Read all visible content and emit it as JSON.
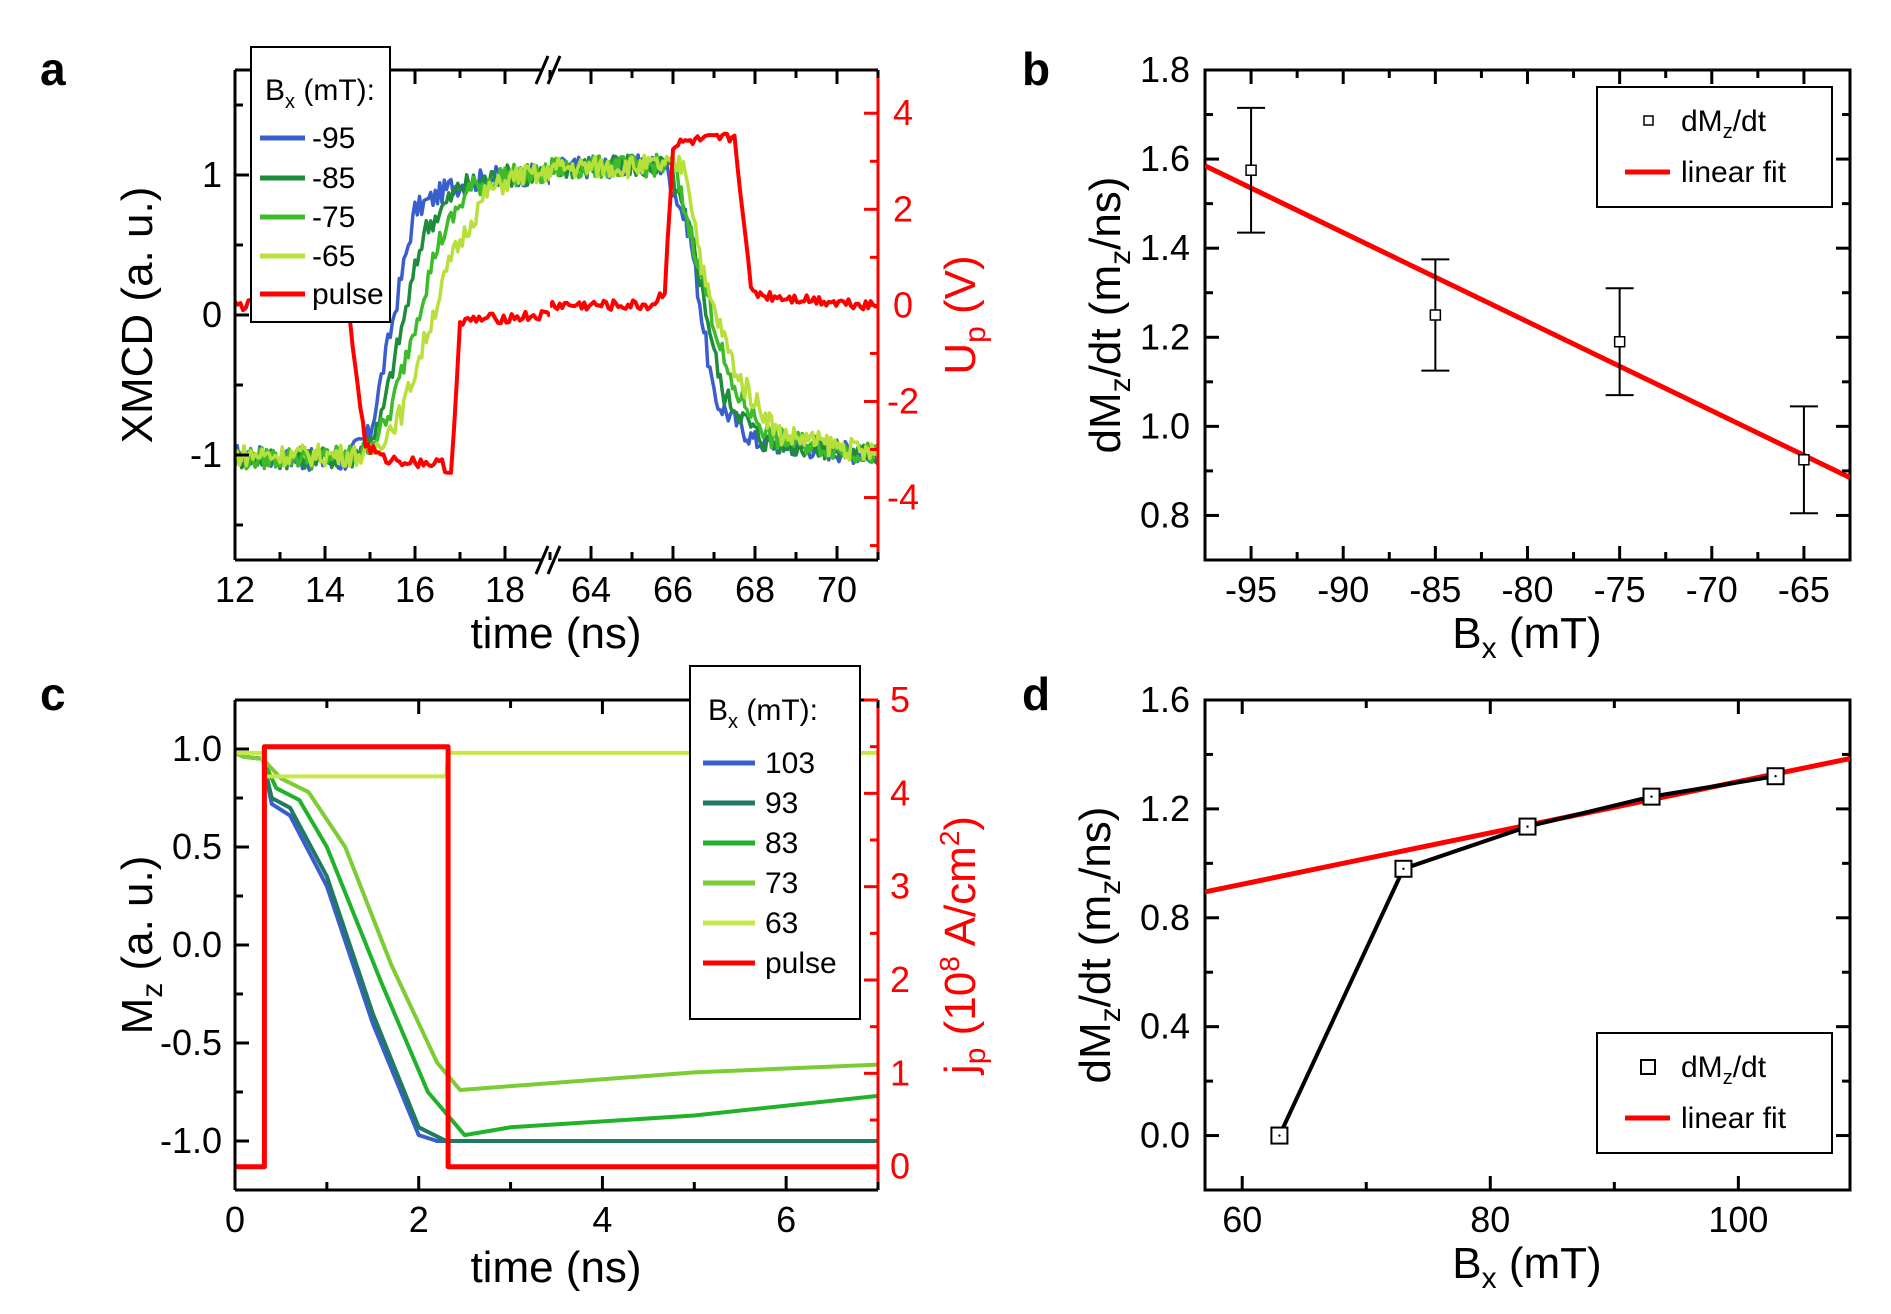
{
  "chart_data": [
    {
      "panel": "a",
      "type": "line",
      "title": "",
      "xlabel": "time (ns)",
      "ylabel": "XMCD (a. u.)",
      "ylabel_right_main": "U",
      "ylabel_right_sub": "p",
      "ylabel_right_unit": " (V)",
      "x_segments": [
        {
          "range": [
            12,
            19
          ],
          "ticks": [
            "12",
            "14",
            "16",
            "18"
          ]
        },
        {
          "range": [
            63,
            71
          ],
          "ticks": [
            "64",
            "66",
            "68",
            "70"
          ]
        }
      ],
      "ylim": [
        -1.75,
        1.75
      ],
      "yticks": [
        "-1",
        "0",
        "1"
      ],
      "y2lim": [
        -5.3,
        4.9
      ],
      "y2ticks": [
        "-4",
        "-2",
        "0",
        "2",
        "4"
      ],
      "legend_title_main": "B",
      "legend_title_sub": "x",
      "legend_title_unit": " (mT):",
      "series": [
        {
          "name": "-95",
          "color": "#3a5fcd",
          "points": [
            [
              12,
              -1.0
            ],
            [
              14.4,
              -1.05
            ],
            [
              15.0,
              -0.85
            ],
            [
              16.0,
              0.75
            ],
            [
              16.8,
              0.92
            ],
            [
              18.0,
              1.0
            ],
            [
              19,
              1.0
            ],
            [
              63,
              1.05
            ],
            [
              65.8,
              1.07
            ],
            [
              66.4,
              0.6
            ],
            [
              67.0,
              -0.6
            ],
            [
              68.0,
              -0.9
            ],
            [
              71,
              -1.0
            ]
          ]
        },
        {
          "name": "-85",
          "color": "#1e8c3a",
          "points": [
            [
              12,
              -1.02
            ],
            [
              14.6,
              -1.02
            ],
            [
              15.2,
              -0.8
            ],
            [
              16.2,
              0.6
            ],
            [
              17.0,
              0.92
            ],
            [
              18.0,
              1.0
            ],
            [
              19,
              1.0
            ],
            [
              63,
              1.05
            ],
            [
              65.9,
              1.07
            ],
            [
              66.5,
              0.5
            ],
            [
              67.2,
              -0.55
            ],
            [
              68.2,
              -0.9
            ],
            [
              71,
              -1.0
            ]
          ]
        },
        {
          "name": "-75",
          "color": "#3dbb2a",
          "points": [
            [
              12,
              -1.03
            ],
            [
              14.8,
              -1.0
            ],
            [
              15.4,
              -0.75
            ],
            [
              16.5,
              0.5
            ],
            [
              17.2,
              0.9
            ],
            [
              18.0,
              1.0
            ],
            [
              19,
              1.0
            ],
            [
              63,
              1.05
            ],
            [
              66.0,
              1.07
            ],
            [
              66.6,
              0.4
            ],
            [
              67.4,
              -0.5
            ],
            [
              68.4,
              -0.88
            ],
            [
              71,
              -1.0
            ]
          ]
        },
        {
          "name": "-65",
          "color": "#b8e03c",
          "points": [
            [
              12,
              -1.0
            ],
            [
              15.0,
              -1.0
            ],
            [
              15.7,
              -0.7
            ],
            [
              16.8,
              0.4
            ],
            [
              17.6,
              0.88
            ],
            [
              18.3,
              1.0
            ],
            [
              19,
              1.0
            ],
            [
              63,
              1.05
            ],
            [
              66.3,
              1.07
            ],
            [
              66.8,
              0.2
            ],
            [
              67.6,
              -0.45
            ],
            [
              68.6,
              -0.85
            ],
            [
              71,
              -1.0
            ]
          ]
        },
        {
          "name": "pulse",
          "color": "#ff0000",
          "axis": "right",
          "points": [
            [
              12,
              0
            ],
            [
              14.5,
              0
            ],
            [
              14.9,
              -2.9
            ],
            [
              15.3,
              -3.2
            ],
            [
              16.6,
              -3.3
            ],
            [
              16.8,
              -3.5
            ],
            [
              17.0,
              -0.4
            ],
            [
              17.3,
              -0.3
            ],
            [
              19,
              -0.2
            ],
            [
              63,
              0
            ],
            [
              65.5,
              0
            ],
            [
              65.8,
              0.3
            ],
            [
              66.0,
              3.3
            ],
            [
              66.3,
              3.4
            ],
            [
              67.5,
              3.5
            ],
            [
              67.7,
              2.0
            ],
            [
              67.9,
              0.3
            ],
            [
              68.3,
              0.2
            ],
            [
              71,
              0
            ]
          ]
        }
      ]
    },
    {
      "panel": "b",
      "type": "scatter",
      "title": "",
      "xlabel_main": "B",
      "xlabel_sub": "x",
      "xlabel_unit": " (mT)",
      "ylabel_a": "dM",
      "ylabel_sub": "z",
      "ylabel_b": "/dt (m",
      "ylabel_sub2": "z",
      "ylabel_c": "/ns)",
      "xlim": [
        -97.5,
        -62.5
      ],
      "xticks": [
        "-95",
        "-90",
        "-85",
        "-80",
        "-75",
        "-70",
        "-65"
      ],
      "ylim": [
        0.7,
        1.8
      ],
      "yticks": [
        "0.8",
        "1.0",
        "1.2",
        "1.4",
        "1.6",
        "1.8"
      ],
      "series": [
        {
          "name_a": "dM",
          "name_sub": "z",
          "name_b": "/dt",
          "x": [
            -95,
            -85,
            -75,
            -65
          ],
          "y": [
            1.575,
            1.25,
            1.19,
            0.925
          ],
          "err": [
            0.14,
            0.125,
            0.12,
            0.12
          ]
        },
        {
          "name": "linear fit",
          "color": "#ff0000",
          "x": [
            -97.5,
            -62.5
          ],
          "y": [
            1.585,
            0.885
          ]
        }
      ]
    },
    {
      "panel": "c",
      "type": "line",
      "title": "",
      "xlabel": "time (ns)",
      "ylabel_main": "M",
      "ylabel_sub": "z",
      "ylabel_unit": " (a. u.)",
      "ylabel_right_main": "j",
      "ylabel_right_sub": "p",
      "ylabel_right_pre": " (10",
      "ylabel_right_sup": "8",
      "ylabel_right_mid": " A/cm",
      "ylabel_right_sup2": "2",
      "ylabel_right_end": ")",
      "xlim": [
        0,
        7
      ],
      "xticks": [
        "0",
        "2",
        "4",
        "6"
      ],
      "ylim": [
        -1.25,
        1.25
      ],
      "yticks": [
        "-1.0",
        "-0.5",
        "0.0",
        "0.5",
        "1.0"
      ],
      "y2lim": [
        -0.25,
        5.0
      ],
      "y2ticks": [
        "0",
        "1",
        "2",
        "3",
        "4",
        "5"
      ],
      "legend_title_main": "B",
      "legend_title_sub": "x",
      "legend_title_unit": " (mT):",
      "series": [
        {
          "name": "103",
          "color": "#3a5fcd",
          "points": [
            [
              0,
              0.98
            ],
            [
              0.1,
              0.96
            ],
            [
              0.3,
              0.95
            ],
            [
              0.4,
              0.72
            ],
            [
              0.6,
              0.66
            ],
            [
              1.0,
              0.3
            ],
            [
              1.5,
              -0.4
            ],
            [
              2.0,
              -0.97
            ],
            [
              2.2,
              -1.0
            ],
            [
              7,
              -1.0
            ]
          ]
        },
        {
          "name": "93",
          "color": "#1f7a64",
          "points": [
            [
              0,
              0.98
            ],
            [
              0.1,
              0.96
            ],
            [
              0.3,
              0.95
            ],
            [
              0.4,
              0.75
            ],
            [
              0.6,
              0.7
            ],
            [
              1.0,
              0.35
            ],
            [
              1.5,
              -0.35
            ],
            [
              2.0,
              -0.93
            ],
            [
              2.3,
              -1.0
            ],
            [
              7,
              -1.0
            ]
          ]
        },
        {
          "name": "83",
          "color": "#22b12a",
          "points": [
            [
              0,
              0.98
            ],
            [
              0.1,
              0.96
            ],
            [
              0.3,
              0.95
            ],
            [
              0.45,
              0.8
            ],
            [
              0.7,
              0.74
            ],
            [
              1.0,
              0.5
            ],
            [
              1.6,
              -0.2
            ],
            [
              2.1,
              -0.75
            ],
            [
              2.5,
              -0.97
            ],
            [
              3.0,
              -0.93
            ],
            [
              5,
              -0.87
            ],
            [
              7,
              -0.77
            ]
          ]
        },
        {
          "name": "73",
          "color": "#7ccc34",
          "points": [
            [
              0,
              0.98
            ],
            [
              0.1,
              0.96
            ],
            [
              0.3,
              0.95
            ],
            [
              0.5,
              0.85
            ],
            [
              0.8,
              0.78
            ],
            [
              1.2,
              0.5
            ],
            [
              1.7,
              -0.1
            ],
            [
              2.2,
              -0.6
            ],
            [
              2.45,
              -0.74
            ],
            [
              3.0,
              -0.72
            ],
            [
              5,
              -0.65
            ],
            [
              7,
              -0.61
            ]
          ]
        },
        {
          "name": "63",
          "color": "#c7e84a",
          "points": [
            [
              0,
              0.98
            ],
            [
              0.3,
              0.98
            ],
            [
              0.32,
              0.86
            ],
            [
              2.3,
              0.86
            ],
            [
              2.32,
              0.98
            ],
            [
              7,
              0.98
            ]
          ]
        },
        {
          "name": "pulse",
          "color": "#ff0000",
          "axis": "right",
          "points": [
            [
              0,
              0
            ],
            [
              0.32,
              0
            ],
            [
              0.32,
              4.5
            ],
            [
              2.32,
              4.5
            ],
            [
              2.32,
              0
            ],
            [
              7,
              0
            ]
          ]
        }
      ]
    },
    {
      "panel": "d",
      "type": "scatter",
      "title": "",
      "xlabel_main": "B",
      "xlabel_sub": "x",
      "xlabel_unit": " (mT)",
      "ylabel_a": "dM",
      "ylabel_sub": "z",
      "ylabel_b": "/dt (m",
      "ylabel_sub2": "z",
      "ylabel_c": "/ns)",
      "xlim": [
        57,
        109
      ],
      "xticks": [
        "60",
        "80",
        "100"
      ],
      "ylim": [
        -0.2,
        1.6
      ],
      "yticks": [
        "0.0",
        "0.4",
        "0.8",
        "1.2",
        "1.6"
      ],
      "series": [
        {
          "name_a": "dM",
          "name_sub": "z",
          "name_b": "/dt",
          "x": [
            63,
            73,
            83,
            93,
            103
          ],
          "y": [
            0.0,
            0.98,
            1.135,
            1.245,
            1.32
          ]
        },
        {
          "name": "linear fit",
          "color": "#ff0000",
          "x": [
            57,
            109
          ],
          "y": [
            0.895,
            1.385
          ]
        }
      ]
    }
  ]
}
